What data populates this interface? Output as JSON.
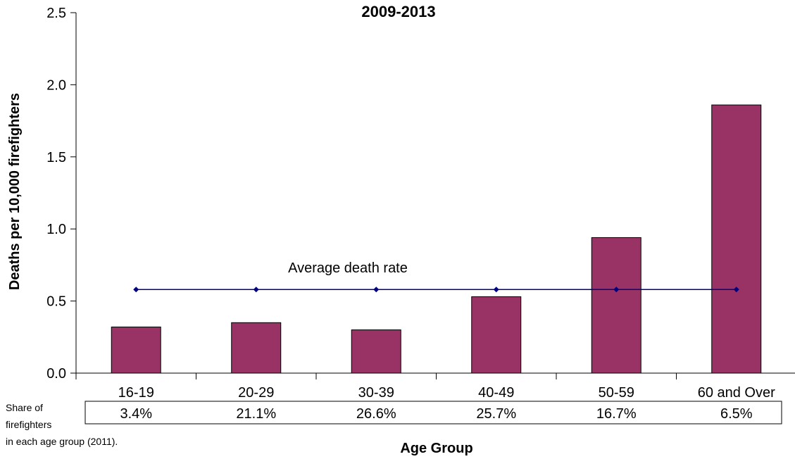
{
  "chart_data": {
    "type": "bar",
    "title": "2009-2013",
    "xlabel": "Age Group",
    "ylabel": "Deaths per 10,000 firefighters",
    "categories": [
      "16-19",
      "20-29",
      "30-39",
      "40-49",
      "50-59",
      "60 and Over"
    ],
    "values": [
      0.32,
      0.35,
      0.3,
      0.53,
      0.94,
      1.86
    ],
    "ylim": [
      0,
      2.5
    ],
    "yticks": [
      "0.0",
      "0.5",
      "1.0",
      "1.5",
      "2.0",
      "2.5"
    ],
    "grid": false,
    "bar_color": "#993366",
    "average_line": {
      "label": "Average death rate",
      "value": 0.58,
      "color": "#000080"
    },
    "share_table": {
      "caption_lines": [
        "Share of",
        "firefighters",
        "in each age group (2011)."
      ],
      "values": [
        "3.4%",
        "21.1%",
        "26.6%",
        "25.7%",
        "16.7%",
        "6.5%"
      ]
    }
  }
}
